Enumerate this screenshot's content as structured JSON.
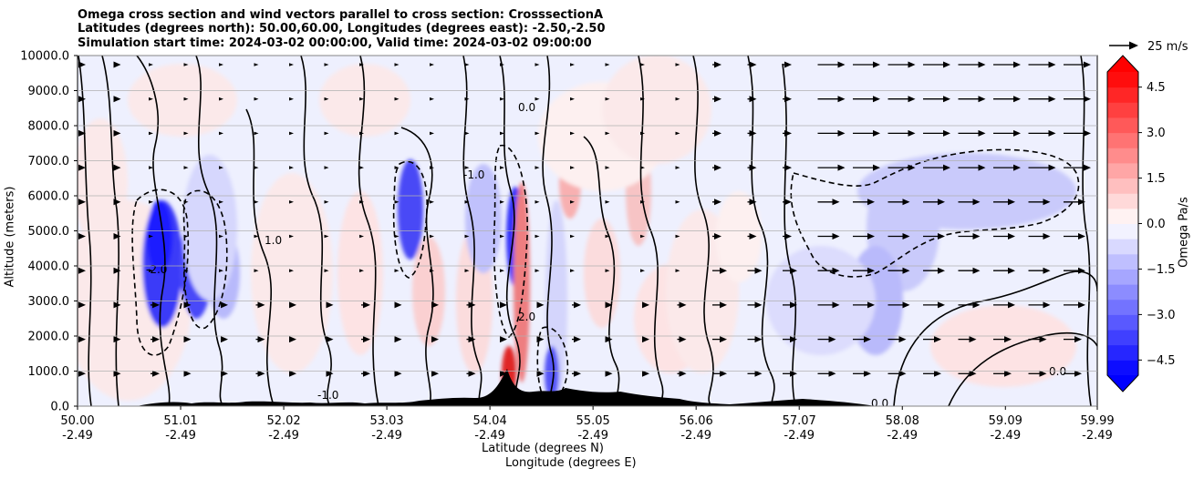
{
  "chart_data": {
    "type": "contourf",
    "title_lines": [
      "Omega cross section and wind vectors parallel to cross section: CrosssectionA",
      "Latitudes (degrees north): 50.00,60.00, Longitudes (degrees east): -2.50,-2.50",
      "Simulation start time: 2024-03-02 00:00:00, Valid time: 2024-03-02 09:00:00"
    ],
    "ylabel": "Altitude (meters)",
    "xlabel_lat": "Latitude (degrees N)",
    "xlabel_lon": "Longitude (degrees E)",
    "ylim": [
      0,
      10000
    ],
    "yticks": [
      "0.0",
      "1000.0",
      "2000.0",
      "3000.0",
      "4000.0",
      "5000.0",
      "6000.0",
      "7000.0",
      "8000.0",
      "9000.0",
      "10000.0"
    ],
    "xlim": [
      50.0,
      59.99
    ],
    "xticks_lat": [
      "50.00",
      "51.01",
      "52.02",
      "53.03",
      "54.04",
      "55.05",
      "56.06",
      "57.07",
      "58.08",
      "59.09",
      "59.99"
    ],
    "xticks_lon": [
      "-2.49",
      "-2.49",
      "-2.49",
      "-2.49",
      "-2.49",
      "-2.49",
      "-2.49",
      "-2.49",
      "-2.49",
      "-2.49",
      "-2.49"
    ],
    "grid_y": true,
    "colorbar": {
      "label": "Omega Pa/s",
      "range": [
        -5.0,
        5.0
      ],
      "ticks": [
        "4.5",
        "3.0",
        "1.5",
        "0.0",
        "−1.5",
        "−3.0",
        "−4.5"
      ],
      "cmap": "bwr",
      "extend": "both"
    },
    "quiver_key": {
      "label": "25 m/s",
      "speed": 25
    },
    "contour_labels": [
      "0.0",
      "-1.0",
      "1.0",
      "-2.0",
      "2.0",
      "0.0",
      "-1.0",
      "0.0"
    ],
    "colors": {
      "negative_max": "#0000ff",
      "positive_max": "#ff0000",
      "neutral": "#ffffff",
      "terrain": "#000000"
    }
  }
}
